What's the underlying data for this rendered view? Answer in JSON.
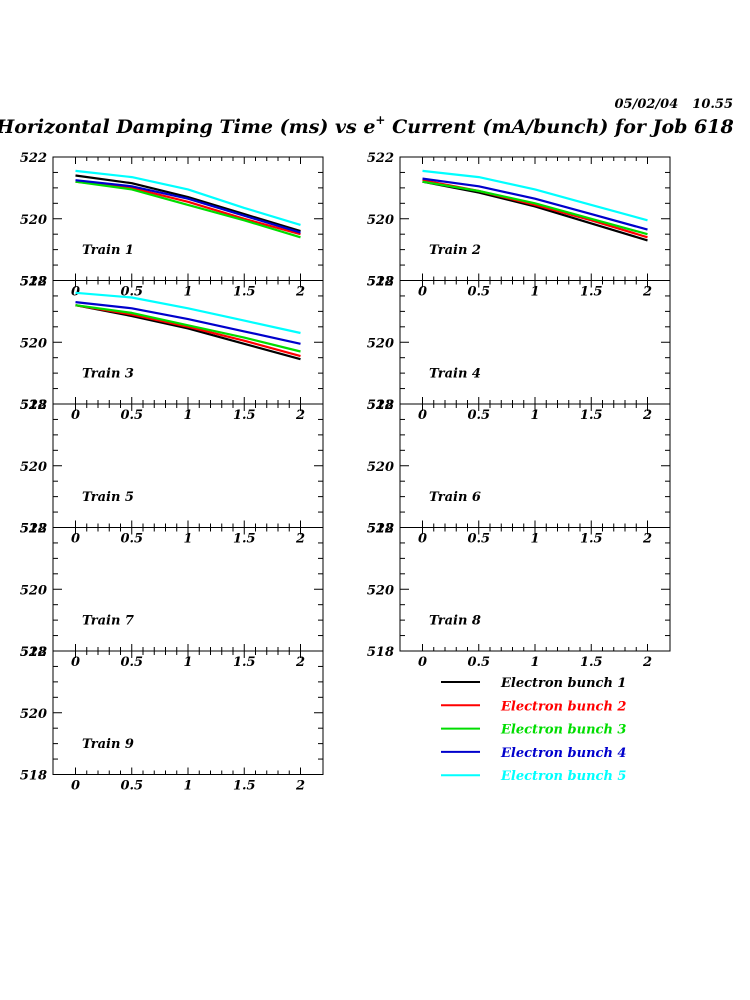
{
  "header": {
    "date": "05/02/04",
    "time": "10.55"
  },
  "title": {
    "main": "Horizontal Damping Time (ms) vs e",
    "superscript": "+",
    "suffix": " Current (mA/bunch) for Job 618"
  },
  "chart_data": {
    "type": "line",
    "xlim": [
      -0.2,
      2.2
    ],
    "ylim": [
      518,
      522
    ],
    "x_ticks": [
      "0",
      "0.5",
      "1",
      "1.5",
      "2"
    ],
    "x_tick_values": [
      0,
      0.5,
      1,
      1.5,
      2
    ],
    "y_ticks": [
      "518",
      "520",
      "522"
    ],
    "y_tick_values": [
      518,
      520,
      522
    ],
    "grid": false,
    "legend_placement": "bottom-right",
    "series_names": [
      "Electron bunch 1",
      "Electron bunch 2",
      "Electron bunch 3",
      "Electron bunch 4",
      "Electron bunch 5"
    ],
    "series_colors": [
      "#000000",
      "#ff0000",
      "#00dd00",
      "#0000cc",
      "#00ffff"
    ],
    "x": [
      0,
      0.5,
      1,
      1.5,
      2
    ],
    "panels": [
      {
        "label": "Train 1",
        "series": [
          {
            "name": "Electron bunch 1",
            "values": [
              521.4,
              521.15,
              520.7,
              520.15,
              519.6
            ]
          },
          {
            "name": "Electron bunch 2",
            "values": [
              521.2,
              521.0,
              520.55,
              520.0,
              519.5
            ]
          },
          {
            "name": "Electron bunch 3",
            "values": [
              521.2,
              520.95,
              520.45,
              519.95,
              519.4
            ]
          },
          {
            "name": "Electron bunch 4",
            "values": [
              521.25,
              521.05,
              520.65,
              520.1,
              519.55
            ]
          },
          {
            "name": "Electron bunch 5",
            "values": [
              521.55,
              521.35,
              520.95,
              520.35,
              519.8
            ]
          }
        ]
      },
      {
        "label": "Train 2",
        "series": [
          {
            "name": "Electron bunch 1",
            "values": [
              521.2,
              520.85,
              520.4,
              519.85,
              519.3
            ]
          },
          {
            "name": "Electron bunch 2",
            "values": [
              521.25,
              520.9,
              520.45,
              519.95,
              519.4
            ]
          },
          {
            "name": "Electron bunch 3",
            "values": [
              521.2,
              520.9,
              520.5,
              520.0,
              519.5
            ]
          },
          {
            "name": "Electron bunch 4",
            "values": [
              521.3,
              521.05,
              520.65,
              520.15,
              519.65
            ]
          },
          {
            "name": "Electron bunch 5",
            "values": [
              521.55,
              521.35,
              520.95,
              520.45,
              519.95
            ]
          }
        ]
      },
      {
        "label": "Train 3",
        "series": [
          {
            "name": "Electron bunch 1",
            "values": [
              521.2,
              520.85,
              520.45,
              519.95,
              519.45
            ]
          },
          {
            "name": "Electron bunch 2",
            "values": [
              521.2,
              520.9,
              520.5,
              520.05,
              519.55
            ]
          },
          {
            "name": "Electron bunch 3",
            "values": [
              521.2,
              520.95,
              520.55,
              520.15,
              519.7
            ]
          },
          {
            "name": "Electron bunch 4",
            "values": [
              521.3,
              521.1,
              520.75,
              520.35,
              519.95
            ]
          },
          {
            "name": "Electron bunch 5",
            "values": [
              521.6,
              521.45,
              521.1,
              520.7,
              520.3
            ]
          }
        ]
      },
      {
        "label": "Train 4",
        "series": []
      },
      {
        "label": "Train 5",
        "series": []
      },
      {
        "label": "Train 6",
        "series": []
      },
      {
        "label": "Train 7",
        "series": []
      },
      {
        "label": "Train 8",
        "series": []
      },
      {
        "label": "Train 9",
        "series": []
      }
    ]
  }
}
